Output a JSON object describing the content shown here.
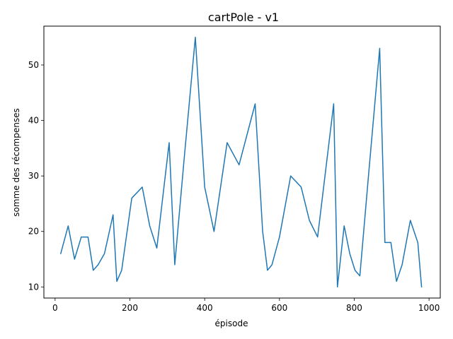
{
  "chart_data": {
    "type": "line",
    "title": "cartPole - v1",
    "xlabel": "épisode",
    "ylabel": "somme des récompenses",
    "xlim": [
      -30,
      1030
    ],
    "ylim": [
      8,
      57
    ],
    "xticks": [
      0,
      200,
      400,
      600,
      800,
      1000
    ],
    "yticks": [
      10,
      20,
      30,
      40,
      50
    ],
    "grid": false,
    "line_color": "#1f77b4",
    "series": [
      {
        "x": [
          15,
          35,
          52,
          70,
          88,
          102,
          115,
          132,
          155,
          165,
          178,
          205,
          233,
          253,
          272,
          305,
          320,
          345,
          375,
          400,
          425,
          460,
          492,
          535,
          555,
          568,
          580,
          600,
          630,
          658,
          680,
          702,
          745,
          755,
          773,
          788,
          802,
          815,
          838,
          868,
          882,
          898,
          913,
          928,
          950,
          970,
          980
        ],
        "y": [
          16,
          21,
          15,
          19,
          19,
          13,
          14,
          16,
          23,
          11,
          13,
          26,
          28,
          21,
          17,
          36,
          14,
          33,
          55,
          28,
          20,
          36,
          32,
          43,
          20,
          13,
          14,
          19,
          30,
          28,
          22,
          19,
          43,
          10,
          21,
          16,
          13,
          12,
          30,
          53,
          18,
          18,
          11,
          14,
          22,
          18,
          10
        ]
      }
    ]
  }
}
